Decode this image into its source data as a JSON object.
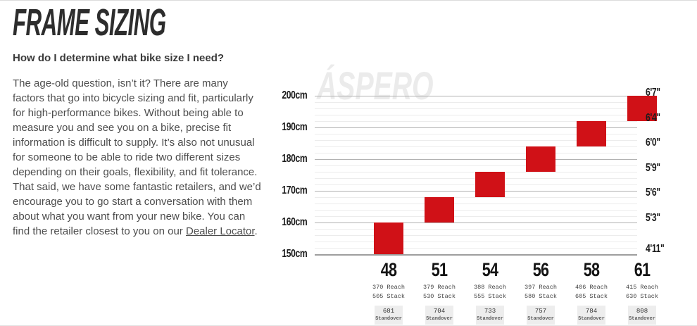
{
  "page": {
    "title": "FRAME SIZING",
    "question": "How do I determine what bike size I need?",
    "body_text": "The age-old question, isn’t it? There are many factors that go into bicycle sizing and fit, particularly for high-performance bikes. Without being able to measure you and see you on a bike, precise fit information is difficult to supply. It’s also not unusual for someone to be able to ride two different sizes depending on their goals, flexibility, and fit tolerance. That said, we have some fantastic retailers, and we’d encourage you to go start a conversation with them about what you want from your new bike. You can find the retailer closest to you on our ",
    "link_text": "Dealer Locator",
    "body_suffix": "."
  },
  "chart_data": {
    "type": "bar",
    "watermark": "ÁSPERO",
    "description": "Rider height range per frame size (floating bars), rider height in cm on left axis and feet/inches on right axis",
    "ylim_cm": [
      150,
      200
    ],
    "grid": true,
    "y_axis_left": {
      "unit": "cm",
      "ticks": [
        {
          "label": "200cm",
          "cm": 200
        },
        {
          "label": "190cm",
          "cm": 190
        },
        {
          "label": "180cm",
          "cm": 180
        },
        {
          "label": "170cm",
          "cm": 170
        },
        {
          "label": "160cm",
          "cm": 160
        },
        {
          "label": "150cm",
          "cm": 150
        }
      ]
    },
    "y_axis_right": {
      "unit": "ft-in",
      "ticks": [
        {
          "label": "6'7\"",
          "cm": 200.7
        },
        {
          "label": "6'4\"",
          "cm": 193.0
        },
        {
          "label": "6'0\"",
          "cm": 182.9
        },
        {
          "label": "5'9\"",
          "cm": 175.3
        },
        {
          "label": "5'6\"",
          "cm": 167.6
        },
        {
          "label": "5'3\"",
          "cm": 160.0
        },
        {
          "label": "4'11\"",
          "cm": 149.9
        }
      ]
    },
    "sizes": [
      {
        "label": "48",
        "reach_mm": 370,
        "stack_mm": 505,
        "standover_mm": 681,
        "rider_height_cm": [
          150,
          160
        ]
      },
      {
        "label": "51",
        "reach_mm": 379,
        "stack_mm": 530,
        "standover_mm": 704,
        "rider_height_cm": [
          160,
          168
        ]
      },
      {
        "label": "54",
        "reach_mm": 388,
        "stack_mm": 555,
        "standover_mm": 733,
        "rider_height_cm": [
          168,
          176
        ]
      },
      {
        "label": "56",
        "reach_mm": 397,
        "stack_mm": 580,
        "standover_mm": 757,
        "rider_height_cm": [
          176,
          184
        ]
      },
      {
        "label": "58",
        "reach_mm": 406,
        "stack_mm": 605,
        "standover_mm": 784,
        "rider_height_cm": [
          184,
          192
        ]
      },
      {
        "label": "61",
        "reach_mm": 415,
        "stack_mm": 630,
        "standover_mm": 808,
        "rider_height_cm": [
          192,
          200
        ]
      }
    ],
    "labels": {
      "reach": "Reach",
      "stack": "Stack",
      "standover": "Standover"
    },
    "colors": {
      "bar": "#d01117",
      "grid_major": "#b2b2b2",
      "grid_minor": "#ececec",
      "axis": "#9e9e9e",
      "standover_box_bg": "#ededed",
      "watermark": "#ebebeb"
    }
  }
}
